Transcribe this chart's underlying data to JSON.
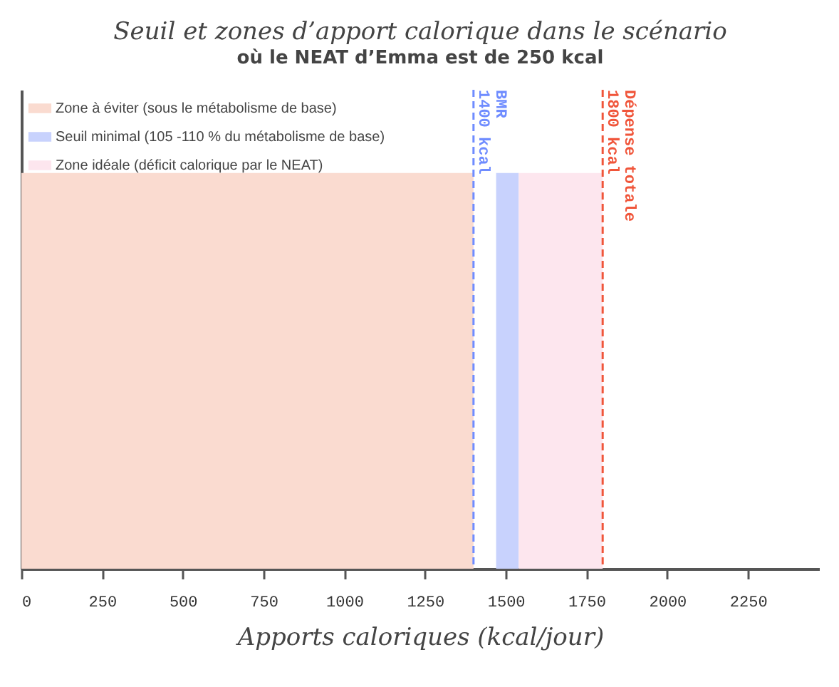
{
  "chart_data": {
    "type": "bar",
    "orientation": "horizontal",
    "title": "Seuil et zones d’apport calorique dans le scénario",
    "subtitle": "où le NEAT d’Emma est de 250 kcal",
    "xlabel": "Apports caloriques (kcal/jour)",
    "xlim": [
      0,
      2470
    ],
    "xticks": [
      0,
      250,
      500,
      750,
      1000,
      1250,
      1500,
      1750,
      2000,
      2250
    ],
    "legend": "top left",
    "categories": [
      null
    ],
    "series": [
      {
        "name": "Zone à éviter (sous le métabolisme de base)",
        "color": "#fadbd0",
        "base": [
          0
        ],
        "values": [
          1400
        ]
      },
      {
        "name": "Seuil minimal (105 -110 % du métabolisme de base)",
        "color": "#c8d2fd",
        "base": [
          1470
        ],
        "values": [
          70
        ]
      },
      {
        "name": "Zone idéale (déficit calorique par le NEAT)",
        "color": "#fde6ee",
        "base": [
          1540
        ],
        "values": [
          260
        ]
      }
    ],
    "ref_lines": [
      {
        "axis": "x",
        "value": 1400,
        "label": "BMR\n1400 kcal",
        "color": "#6f8cff",
        "line_style": "dashed"
      },
      {
        "axis": "x",
        "value": 1800,
        "label": "Dépense totale\n1800 kcal",
        "color": "#f0553a",
        "line_style": "dashed"
      }
    ]
  }
}
